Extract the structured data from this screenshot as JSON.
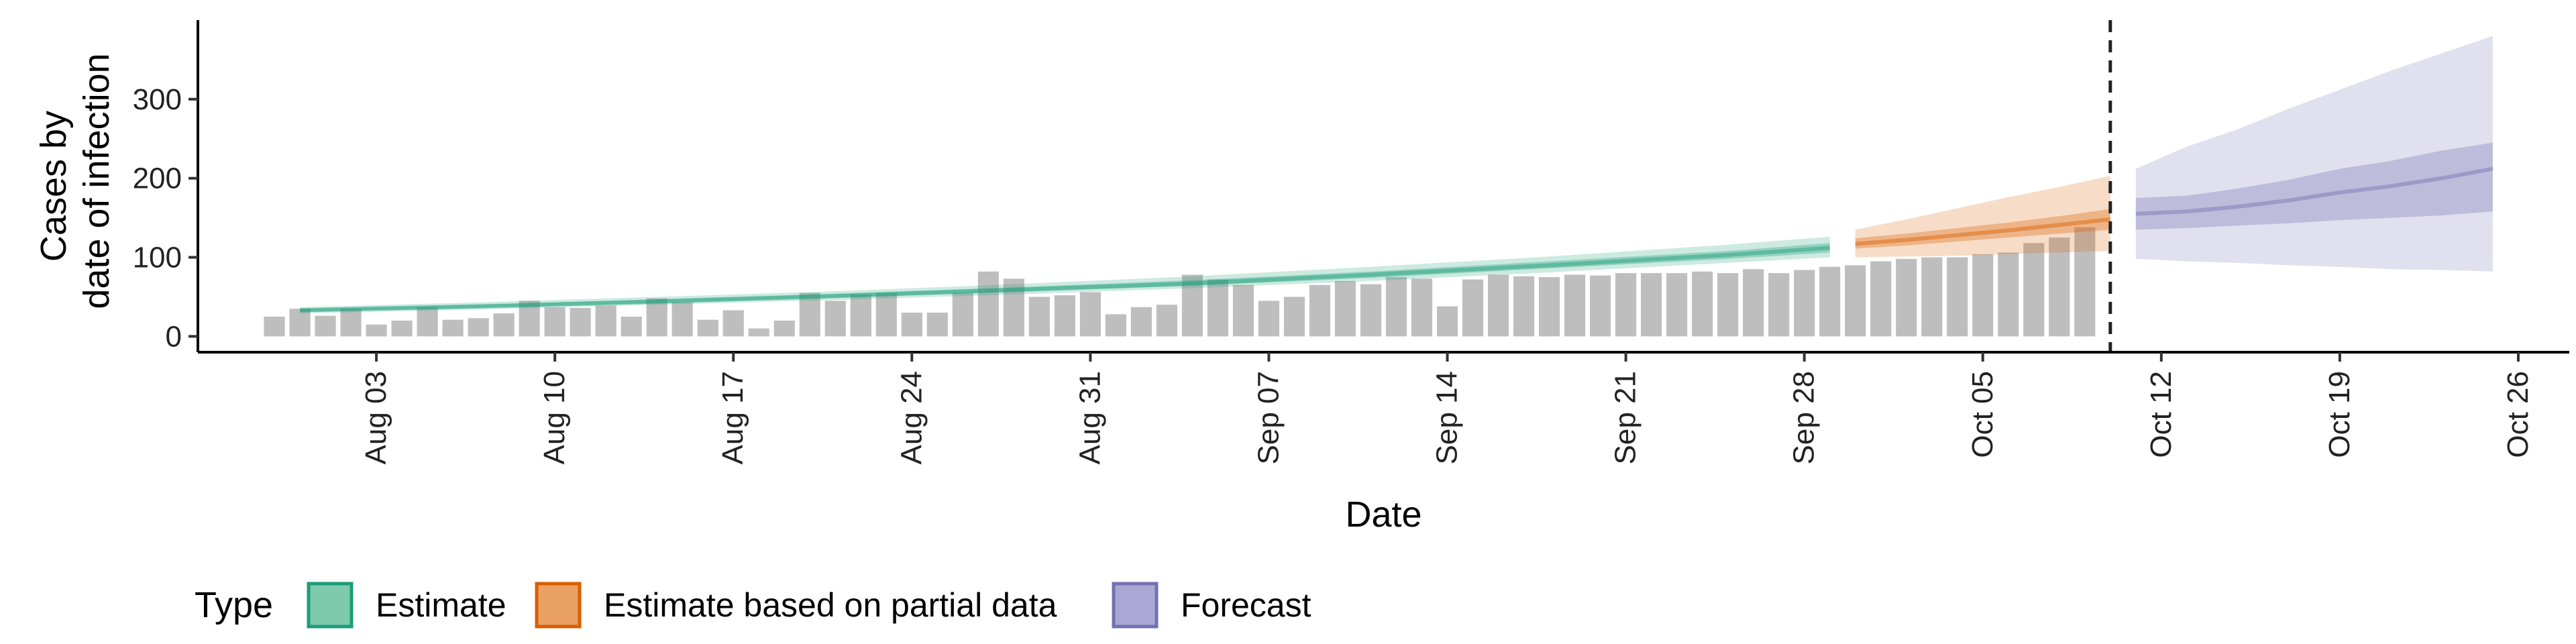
{
  "chart_data": {
    "type": "bar+area",
    "xlabel": "Date",
    "ylabel_lines": [
      "Cases by",
      "date of infection"
    ],
    "y_ticks": [
      0,
      100,
      200,
      300
    ],
    "ylim": [
      -20,
      400
    ],
    "x_tick_labels": [
      "Aug 03",
      "Aug 10",
      "Aug 17",
      "Aug 24",
      "Aug 31",
      "Sep 07",
      "Sep 14",
      "Sep 21",
      "Sep 28",
      "Oct 05",
      "Oct 12",
      "Oct 19",
      "Oct 26"
    ],
    "x_ticks": [
      "2020-08-03",
      "2020-08-10",
      "2020-08-17",
      "2020-08-24",
      "2020-08-31",
      "2020-09-07",
      "2020-09-14",
      "2020-09-21",
      "2020-09-28",
      "2020-10-05",
      "2020-10-12",
      "2020-10-19",
      "2020-10-26"
    ],
    "xlim": [
      "2020-07-27",
      "2020-10-28"
    ],
    "vline_date": "2020-10-10",
    "bars": {
      "start_date": "2020-07-30",
      "color": "#bebebe",
      "values": [
        25,
        35,
        26,
        35,
        15,
        20,
        37,
        21,
        23,
        29,
        45,
        37,
        36,
        39,
        25,
        48,
        43,
        21,
        33,
        10,
        20,
        55,
        45,
        53,
        55,
        30,
        30,
        55,
        82,
        73,
        50,
        52,
        56,
        28,
        37,
        40,
        78,
        72,
        65,
        45,
        50,
        65,
        70,
        66,
        75,
        73,
        38,
        72,
        78,
        76,
        75,
        78,
        77,
        80,
        80,
        80,
        82,
        80,
        85,
        80,
        84,
        88,
        90,
        95,
        98,
        100,
        100,
        104,
        106,
        118,
        125,
        138
      ]
    },
    "series": [
      {
        "name": "Estimate",
        "color": "#1b9e77",
        "dates": [
          "2020-07-31",
          "2020-08-07",
          "2020-08-14",
          "2020-08-21",
          "2020-08-28",
          "2020-09-04",
          "2020-09-11",
          "2020-09-18",
          "2020-09-25",
          "2020-09-29"
        ],
        "median": [
          33,
          38,
          44,
          51,
          59,
          67,
          78,
          90,
          103,
          112
        ],
        "lower50": [
          31,
          36,
          42,
          49,
          56,
          64,
          74,
          86,
          98,
          106
        ],
        "upper50": [
          35,
          40,
          47,
          54,
          62,
          71,
          82,
          95,
          108,
          118
        ],
        "lower90": [
          29,
          34,
          40,
          46,
          53,
          61,
          70,
          81,
          93,
          100
        ],
        "upper90": [
          37,
          43,
          50,
          57,
          66,
          76,
          88,
          101,
          116,
          126
        ]
      },
      {
        "name": "Estimate based on partial data",
        "color": "#d95f02",
        "dates": [
          "2020-09-30",
          "2020-10-02",
          "2020-10-04",
          "2020-10-06",
          "2020-10-08",
          "2020-10-10"
        ],
        "median": [
          117,
          122,
          128,
          134,
          141,
          148
        ],
        "lower50": [
          111,
          115,
          120,
          125,
          130,
          135
        ],
        "upper50": [
          124,
          130,
          137,
          144,
          152,
          161
        ],
        "lower90": [
          100,
          101,
          102,
          104,
          106,
          108
        ],
        "upper90": [
          135,
          148,
          162,
          176,
          189,
          203
        ]
      },
      {
        "name": "Forecast",
        "color": "#7570b3",
        "dates": [
          "2020-10-11",
          "2020-10-13",
          "2020-10-15",
          "2020-10-17",
          "2020-10-19",
          "2020-10-21",
          "2020-10-23",
          "2020-10-25"
        ],
        "median": [
          155,
          158,
          164,
          172,
          182,
          190,
          200,
          212
        ],
        "lower50": [
          135,
          137,
          140,
          143,
          147,
          150,
          153,
          158
        ],
        "upper50": [
          175,
          178,
          187,
          198,
          212,
          222,
          235,
          245
        ],
        "lower90": [
          98,
          95,
          93,
          90,
          88,
          85,
          84,
          82
        ],
        "upper90": [
          212,
          240,
          262,
          288,
          312,
          336,
          358,
          380
        ]
      }
    ],
    "legend": {
      "title": "Type",
      "position": "bottom",
      "entries": [
        "Estimate",
        "Estimate based on partial data",
        "Forecast"
      ],
      "fills": [
        "#7fc9ac",
        "#eba163",
        "#aba7d4"
      ],
      "strokes": [
        "#1b9e77",
        "#d95f02",
        "#7570b3"
      ]
    }
  }
}
